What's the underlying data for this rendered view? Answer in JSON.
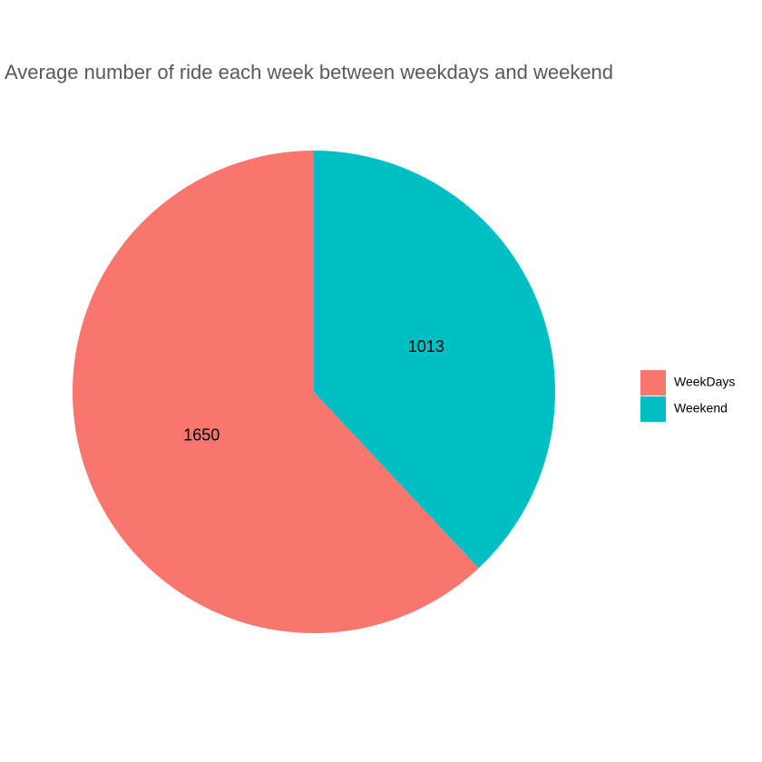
{
  "chart_data": {
    "type": "pie",
    "title": "Average number of ride each week between weekdays and weekend",
    "categories": [
      "WeekDays",
      "Weekend"
    ],
    "values": [
      1650,
      1013
    ],
    "data_labels": [
      "1650",
      "1013"
    ],
    "colors": [
      "#F8766D",
      "#00BFC4"
    ],
    "start_angle_deg": 0,
    "direction": "counterclockwise",
    "legend": {
      "position": "right",
      "entries": [
        "WeekDays",
        "Weekend"
      ]
    },
    "grid": false
  }
}
